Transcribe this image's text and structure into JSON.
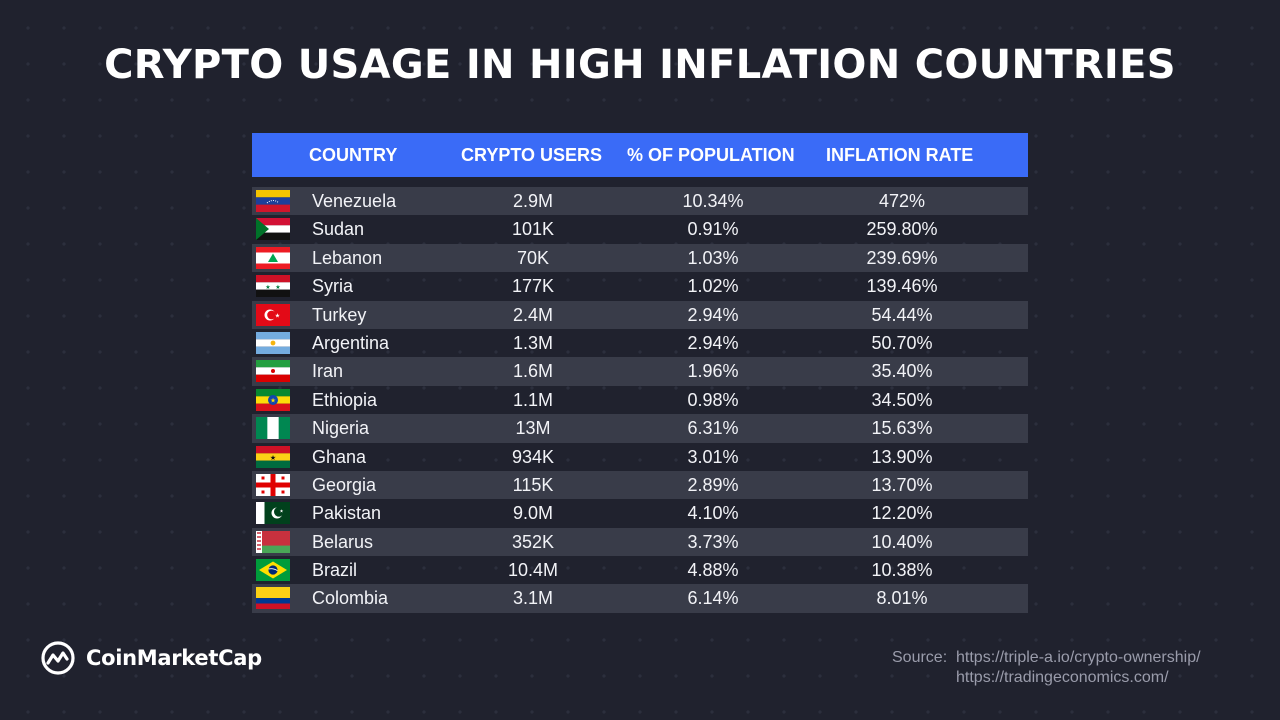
{
  "title": "CRYPTO USAGE IN HIGH INFLATION COUNTRIES",
  "chart_data": {
    "type": "table",
    "columns": [
      "COUNTRY",
      "CRYPTO USERS",
      "% OF POPULATION",
      "INFLATION RATE"
    ],
    "rows": [
      {
        "flag": "venezuela-flag-icon",
        "country": "Venezuela",
        "users": "2.9M",
        "pop": "10.34%",
        "infl": "472%"
      },
      {
        "flag": "sudan-flag-icon",
        "country": "Sudan",
        "users": "101K",
        "pop": "0.91%",
        "infl": "259.80%"
      },
      {
        "flag": "lebanon-flag-icon",
        "country": "Lebanon",
        "users": "70K",
        "pop": "1.03%",
        "infl": "239.69%"
      },
      {
        "flag": "syria-flag-icon",
        "country": "Syria",
        "users": "177K",
        "pop": "1.02%",
        "infl": "139.46%"
      },
      {
        "flag": "turkey-flag-icon",
        "country": "Turkey",
        "users": "2.4M",
        "pop": "2.94%",
        "infl": "54.44%"
      },
      {
        "flag": "argentina-flag-icon",
        "country": "Argentina",
        "users": "1.3M",
        "pop": "2.94%",
        "infl": "50.70%"
      },
      {
        "flag": "iran-flag-icon",
        "country": "Iran",
        "users": "1.6M",
        "pop": "1.96%",
        "infl": "35.40%"
      },
      {
        "flag": "ethiopia-flag-icon",
        "country": "Ethiopia",
        "users": "1.1M",
        "pop": "0.98%",
        "infl": "34.50%"
      },
      {
        "flag": "nigeria-flag-icon",
        "country": "Nigeria",
        "users": "13M",
        "pop": "6.31%",
        "infl": "15.63%"
      },
      {
        "flag": "ghana-flag-icon",
        "country": "Ghana",
        "users": "934K",
        "pop": "3.01%",
        "infl": "13.90%"
      },
      {
        "flag": "georgia-flag-icon",
        "country": "Georgia",
        "users": "115K",
        "pop": "2.89%",
        "infl": "13.70%"
      },
      {
        "flag": "pakistan-flag-icon",
        "country": "Pakistan",
        "users": "9.0M",
        "pop": "4.10%",
        "infl": "12.20%"
      },
      {
        "flag": "belarus-flag-icon",
        "country": "Belarus",
        "users": "352K",
        "pop": "3.73%",
        "infl": "10.40%"
      },
      {
        "flag": "brazil-flag-icon",
        "country": "Brazil",
        "users": "10.4M",
        "pop": "4.88%",
        "infl": "10.38%"
      },
      {
        "flag": "colombia-flag-icon",
        "country": "Colombia",
        "users": "3.1M",
        "pop": "6.14%",
        "infl": "8.01%"
      }
    ]
  },
  "colors": {
    "background": "#20222e",
    "header": "#3a6bf7",
    "row_stripe": "#393c49",
    "source_text": "#9a9cab"
  },
  "logo": {
    "icon": "coinmarketcap-logo-icon",
    "text": "CoinMarketCap"
  },
  "source": {
    "label": "Source:",
    "line1": "https://triple-a.io/crypto-ownership/",
    "line2": "https://tradingeconomics.com/"
  }
}
